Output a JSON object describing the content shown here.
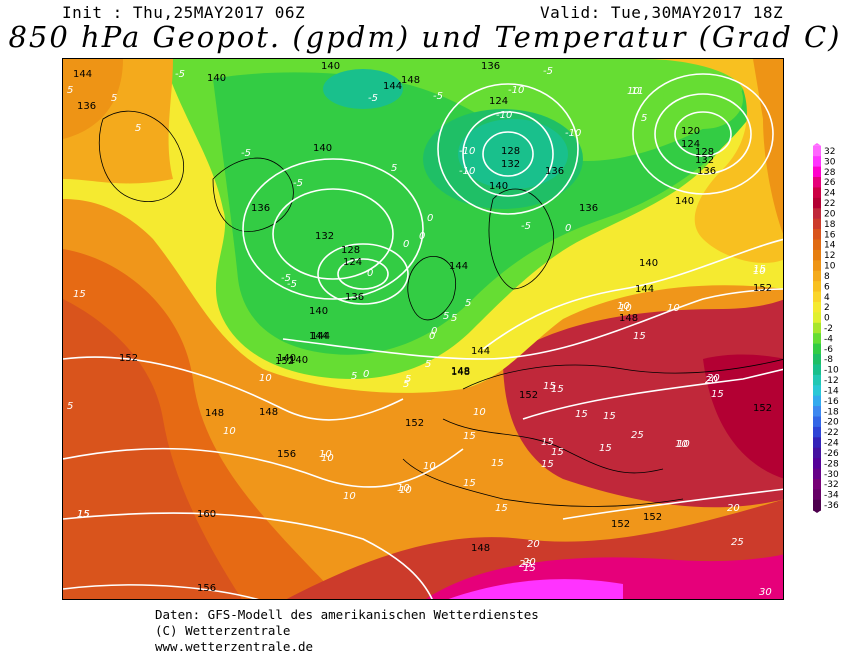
{
  "header": {
    "init": "Init : Thu,25MAY2017 06Z",
    "valid": "Valid: Tue,30MAY2017 18Z",
    "title": "850 hPa Geopot. (gpdm) und Temperatur (Grad C)"
  },
  "footer": {
    "line1": "Daten: GFS-Modell des amerikanischen Wetterdienstes",
    "line2": "(C) Wetterzentrale",
    "line3": "www.wetterzentrale.de"
  },
  "legend": {
    "labels": [
      "32",
      "30",
      "28",
      "26",
      "24",
      "22",
      "20",
      "18",
      "16",
      "14",
      "12",
      "10",
      "8",
      "6",
      "4",
      "2",
      "0",
      "-2",
      "-4",
      "-6",
      "-8",
      "-10",
      "-12",
      "-14",
      "-16",
      "-18",
      "-20",
      "-22",
      "-24",
      "-26",
      "-28",
      "-30",
      "-32",
      "-34",
      "-36"
    ],
    "colors": [
      "#ff66ff",
      "#ff33ff",
      "#ff00cc",
      "#e6007a",
      "#cc0044",
      "#b30033",
      "#c0283a",
      "#cc3b2b",
      "#d9541c",
      "#e06a12",
      "#e67e10",
      "#ee9415",
      "#f4aa1c",
      "#f8c020",
      "#fad52a",
      "#f5ea30",
      "#e0f030",
      "#a8e62c",
      "#66dd33",
      "#33cc44",
      "#1fbf66",
      "#19c08c",
      "#22c8b4",
      "#2ac8d6",
      "#33aaee",
      "#3d88f0",
      "#3366e6",
      "#2e44d6",
      "#3322b8",
      "#4411a0",
      "#550099",
      "#660088",
      "#770077",
      "#660066",
      "#4d004d"
    ]
  },
  "map": {
    "geopotential_labels": [
      "144",
      "140",
      "136",
      "140",
      "148",
      "136",
      "124",
      "128",
      "132",
      "120",
      "124",
      "128",
      "132",
      "136",
      "140",
      "144",
      "140",
      "136",
      "128",
      "124",
      "132",
      "136",
      "140",
      "144",
      "148",
      "152",
      "140",
      "148",
      "144",
      "148",
      "152",
      "156",
      "160",
      "156",
      "148",
      "152",
      "148",
      "152",
      "152",
      "152",
      "152",
      "140",
      "136",
      "140",
      "148",
      "152",
      "144",
      "144",
      "144",
      "140",
      "136"
    ],
    "temperature_labels": [
      "-5",
      "5",
      "5",
      "5",
      "-5",
      "-5",
      "-10",
      "-10",
      "-10",
      "-10",
      "-10",
      "10",
      "5",
      "-5",
      "-5",
      "-5",
      "5",
      "0",
      "0",
      "0",
      "0",
      "-5",
      "-5",
      "0",
      "-5",
      "5",
      "5",
      "5",
      "0",
      "10",
      "15",
      "10",
      "10",
      "5",
      "10",
      "15",
      "20",
      "15",
      "15",
      "25",
      "15",
      "15",
      "15",
      "15",
      "15",
      "20",
      "20",
      "25",
      "25",
      "20",
      "30",
      "15",
      "10",
      "10",
      "10",
      "15",
      "10",
      "15",
      "15",
      "10",
      "10",
      "15",
      "20",
      "15",
      "10",
      "5",
      "5",
      "0",
      "0",
      "5",
      "10",
      "10",
      "15",
      "10",
      "5",
      "15",
      "15",
      "10",
      "15",
      "11"
    ],
    "colors": {
      "warm": "#ee9415",
      "hot": "#c0283a",
      "veryhot": "#e6007a",
      "cold": "#22c8b4",
      "green": "#33cc44",
      "yellow": "#f5ea30",
      "orange": "#f4aa1c"
    }
  }
}
